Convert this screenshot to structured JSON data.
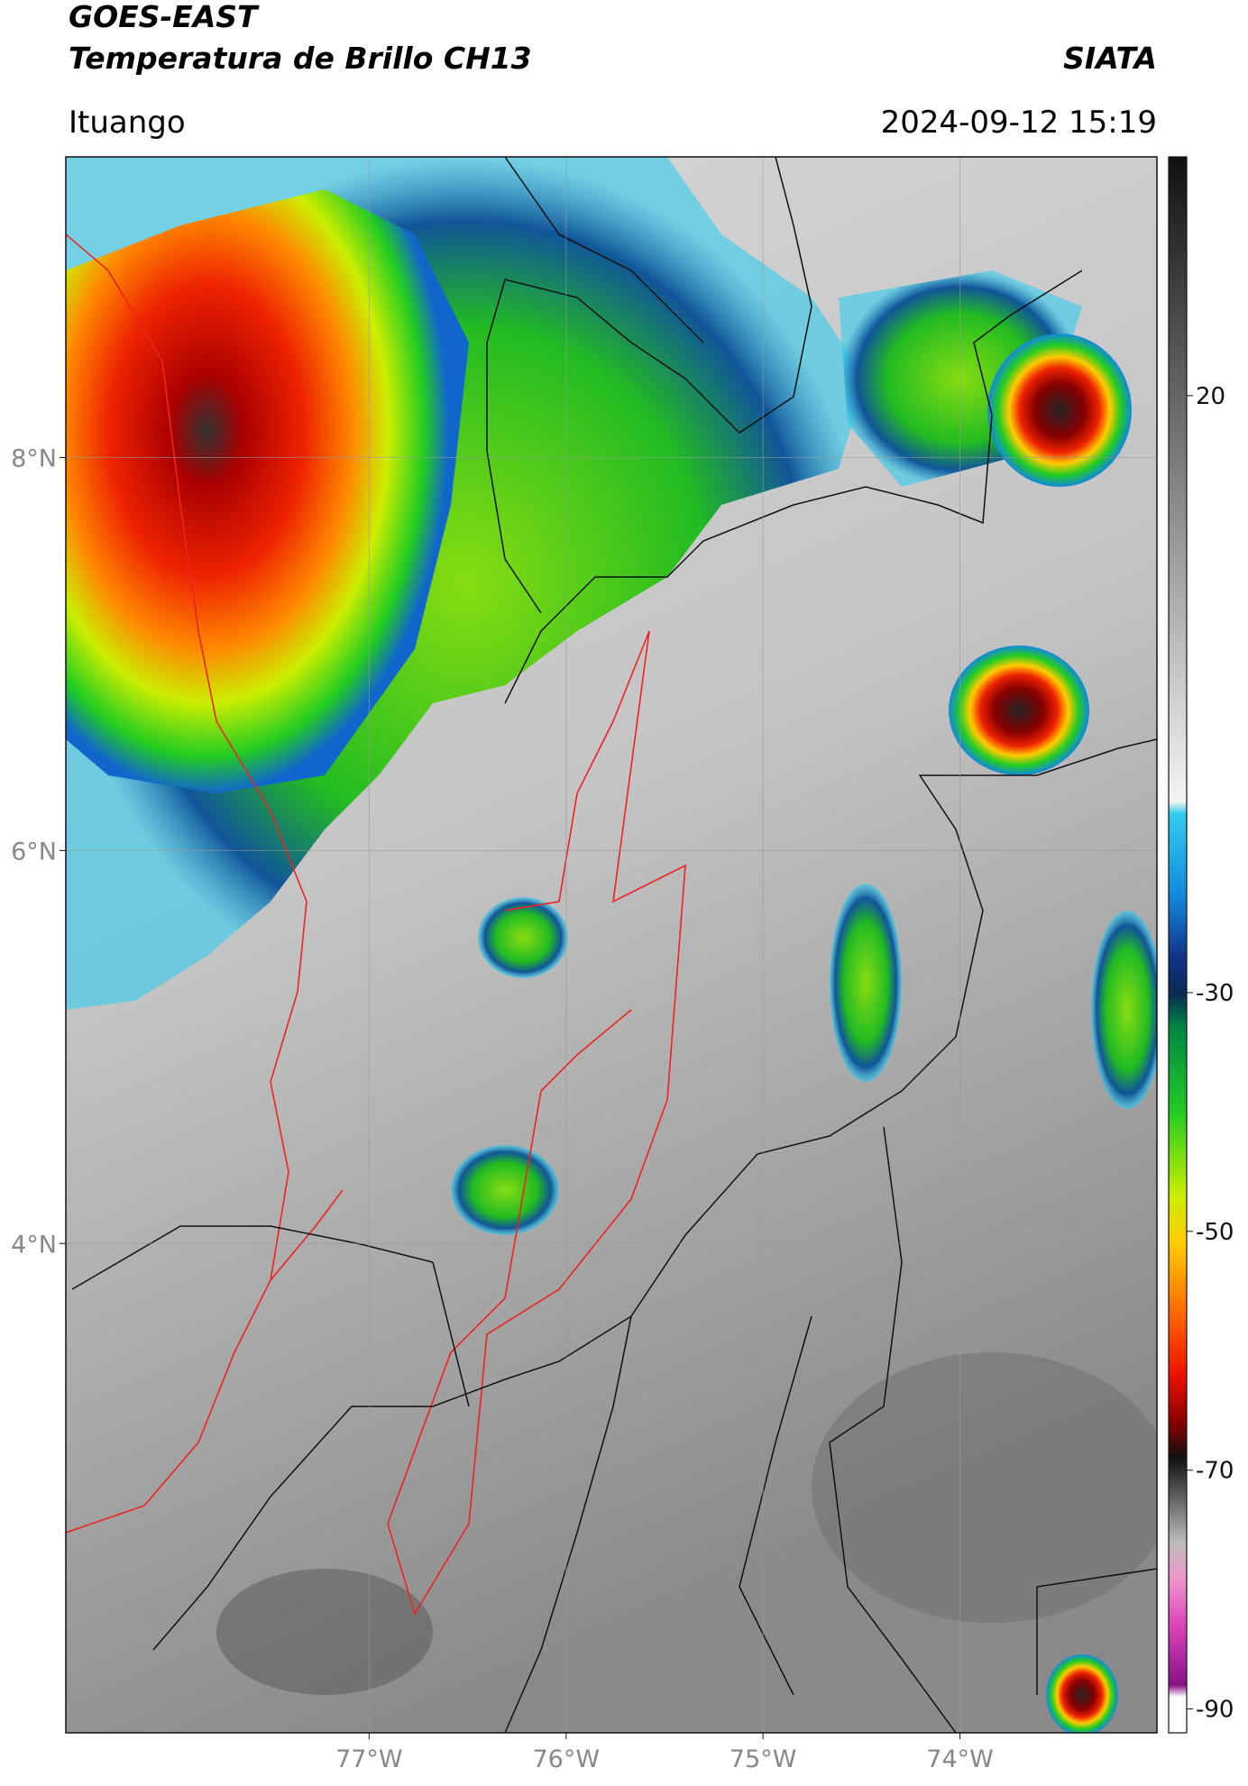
{
  "header": {
    "title": "GOES-EAST",
    "subtitle": "Temperatura de Brillo CH13",
    "org": "SIATA",
    "location": "Ituango",
    "datetime": "2024-09-12 15:19"
  },
  "map": {
    "xlim": [
      -78.54,
      -73.0
    ],
    "ylim": [
      1.51,
      9.53
    ],
    "xticks": [
      {
        "value": -77,
        "label": "77°W"
      },
      {
        "value": -76,
        "label": "76°W"
      },
      {
        "value": -75,
        "label": "75°W"
      },
      {
        "value": -74,
        "label": "74°W"
      }
    ],
    "yticks": [
      {
        "value": 8,
        "label": "8°N"
      },
      {
        "value": 6,
        "label": "6°N"
      },
      {
        "value": 4,
        "label": "4°N"
      }
    ],
    "grid": true
  },
  "colorbar": {
    "range": [
      -92,
      40
    ],
    "ticks": [
      20,
      -30,
      -50,
      -70,
      -90
    ],
    "stops": [
      {
        "value": 40,
        "color": "#111111"
      },
      {
        "value": -14,
        "color": "#f4f4f4"
      },
      {
        "value": -15,
        "color": "#33ccee"
      },
      {
        "value": -22,
        "color": "#1188dd"
      },
      {
        "value": -27,
        "color": "#113388"
      },
      {
        "value": -30,
        "color": "#0a2a55"
      },
      {
        "value": -33,
        "color": "#008844"
      },
      {
        "value": -40,
        "color": "#22cc22"
      },
      {
        "value": -47,
        "color": "#ccee00"
      },
      {
        "value": -51,
        "color": "#ffcc00"
      },
      {
        "value": -56,
        "color": "#ff7700"
      },
      {
        "value": -62,
        "color": "#ee1100"
      },
      {
        "value": -66,
        "color": "#880000"
      },
      {
        "value": -69,
        "color": "#111111"
      },
      {
        "value": -76,
        "color": "#bbbbbb"
      },
      {
        "value": -79,
        "color": "#ee99cc"
      },
      {
        "value": -83,
        "color": "#dd44bb"
      },
      {
        "value": -88,
        "color": "#881188"
      },
      {
        "value": -89,
        "color": "#ffffff"
      },
      {
        "value": -92,
        "color": "#ffffff"
      }
    ]
  }
}
